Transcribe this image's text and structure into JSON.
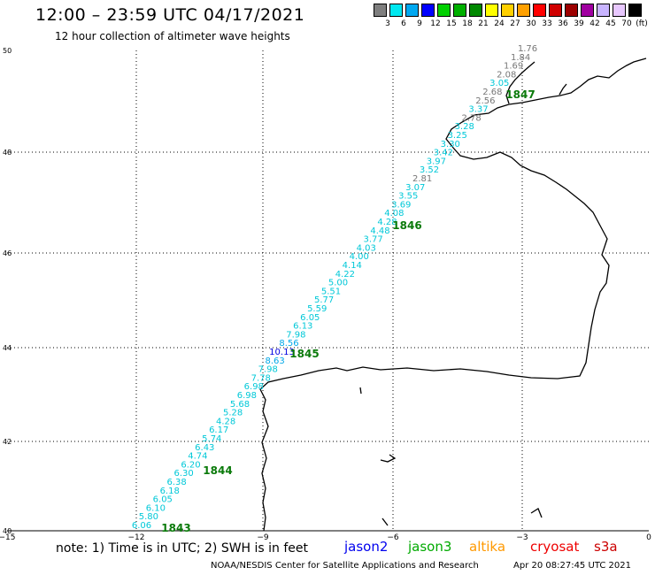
{
  "title": "12:00 – 23:59 UTC 04/17/2021",
  "subtitle": "12 hour collection of altimeter wave heights",
  "colorbar": {
    "swatches": [
      "#7f7f7f",
      "#00e8f0",
      "#00a8f0",
      "#0000ff",
      "#00d000",
      "#00b000",
      "#008800",
      "#ffff00",
      "#ffd000",
      "#ffa000",
      "#ff0000",
      "#d00000",
      "#9c0000",
      "#a000a0",
      "#c8b4ff",
      "#e8c8ff",
      "#000000"
    ],
    "labels": [
      "3",
      "6",
      "9",
      "12",
      "15",
      "18",
      "21",
      "24",
      "27",
      "30",
      "33",
      "36",
      "39",
      "42",
      "45",
      "70"
    ],
    "unit": "(ft)"
  },
  "axes": {
    "lon_ticks": [
      "−15",
      "−12",
      "−9",
      "−6",
      "−3",
      "0"
    ],
    "lat_ticks": [
      "50",
      "48",
      "46",
      "44",
      "42",
      "40"
    ]
  },
  "passes": [
    {
      "label": "1843",
      "color": "#0a7a0a"
    },
    {
      "label": "1844",
      "color": "#0a7a0a"
    },
    {
      "label": "1845",
      "color": "#0a7a0a"
    },
    {
      "label": "1846",
      "color": "#0a7a0a"
    },
    {
      "label": "1847",
      "color": "#0a7a0a"
    }
  ],
  "wave_heights": [
    {
      "v": "6.06",
      "c": "#00c8d8"
    },
    {
      "v": "5.80",
      "c": "#00c8d8"
    },
    {
      "v": "6.10",
      "c": "#00c8d8"
    },
    {
      "v": "6.05",
      "c": "#00c8d8"
    },
    {
      "v": "6.18",
      "c": "#00c8d8"
    },
    {
      "v": "6.38",
      "c": "#00c8d8"
    },
    {
      "v": "6.30",
      "c": "#00c8d8"
    },
    {
      "v": "6.20",
      "c": "#00c8d8"
    },
    {
      "v": "4.74",
      "c": "#00c8d8"
    },
    {
      "v": "6.43",
      "c": "#00c8d8"
    },
    {
      "v": "5.74",
      "c": "#00c8d8"
    },
    {
      "v": "6.17",
      "c": "#00c8d8"
    },
    {
      "v": "4.28",
      "c": "#00c8d8"
    },
    {
      "v": "5.28",
      "c": "#00c8d8"
    },
    {
      "v": "5.68",
      "c": "#00c8d8"
    },
    {
      "v": "6.98",
      "c": "#00c8d8"
    },
    {
      "v": "6.98",
      "c": "#00c8d8"
    },
    {
      "v": "7.78",
      "c": "#00c8d8"
    },
    {
      "v": "7.98",
      "c": "#00c8d8"
    },
    {
      "v": "8.63",
      "c": "#00a8e8"
    },
    {
      "v": "10.13",
      "c": "#0000e0"
    },
    {
      "v": "8.56",
      "c": "#00a8e8"
    },
    {
      "v": "7.98",
      "c": "#00c8d8"
    },
    {
      "v": "6.13",
      "c": "#00c8d8"
    },
    {
      "v": "6.05",
      "c": "#00c8d8"
    },
    {
      "v": "5.59",
      "c": "#00c8d8"
    },
    {
      "v": "5.77",
      "c": "#00c8d8"
    },
    {
      "v": "5.51",
      "c": "#00c8d8"
    },
    {
      "v": "5.00",
      "c": "#00c8d8"
    },
    {
      "v": "4.22",
      "c": "#00c8d8"
    },
    {
      "v": "4.14",
      "c": "#00c8d8"
    },
    {
      "v": "4.00",
      "c": "#00c8d8"
    },
    {
      "v": "4.03",
      "c": "#00c8d8"
    },
    {
      "v": "3.77",
      "c": "#00c8d8"
    },
    {
      "v": "4.48",
      "c": "#00c8d8"
    },
    {
      "v": "4.28",
      "c": "#00c8d8"
    },
    {
      "v": "4.08",
      "c": "#00c8d8"
    },
    {
      "v": "3.69",
      "c": "#00c8d8"
    },
    {
      "v": "3.55",
      "c": "#00c8d8"
    },
    {
      "v": "3.07",
      "c": "#00c8d8"
    },
    {
      "v": "2.81",
      "c": "#777777"
    },
    {
      "v": "3.52",
      "c": "#00c8d8"
    },
    {
      "v": "3.97",
      "c": "#00c8d8"
    },
    {
      "v": "3.42",
      "c": "#00c8d8"
    },
    {
      "v": "3.30",
      "c": "#00c8d8"
    },
    {
      "v": "3.25",
      "c": "#00c8d8"
    },
    {
      "v": "3.28",
      "c": "#00c8d8"
    },
    {
      "v": "2.78",
      "c": "#777777"
    },
    {
      "v": "3.37",
      "c": "#00c8d8"
    },
    {
      "v": "2.56",
      "c": "#777777"
    },
    {
      "v": "2.68",
      "c": "#777777"
    },
    {
      "v": "3.05",
      "c": "#00c8d8"
    },
    {
      "v": "2.08",
      "c": "#777777"
    },
    {
      "v": "1.69",
      "c": "#777777"
    },
    {
      "v": "1.84",
      "c": "#777777"
    },
    {
      "v": "1.76",
      "c": "#777777"
    }
  ],
  "note": "note:  1) Time is in UTC;  2) SWH is in feet",
  "satellites": [
    {
      "name": "jason2",
      "color": "#0000ee"
    },
    {
      "name": "jason3",
      "color": "#00aa00"
    },
    {
      "name": "altika",
      "color": "#ff9900"
    },
    {
      "name": "cryosat",
      "color": "#ee0000"
    },
    {
      "name": "s3a",
      "color": "#cc0000"
    }
  ],
  "credit": "NOAA/NESDIS Center for Satellite Applications and Research",
  "timestamp": "Apr 20 08:27:45 UTC 2021"
}
